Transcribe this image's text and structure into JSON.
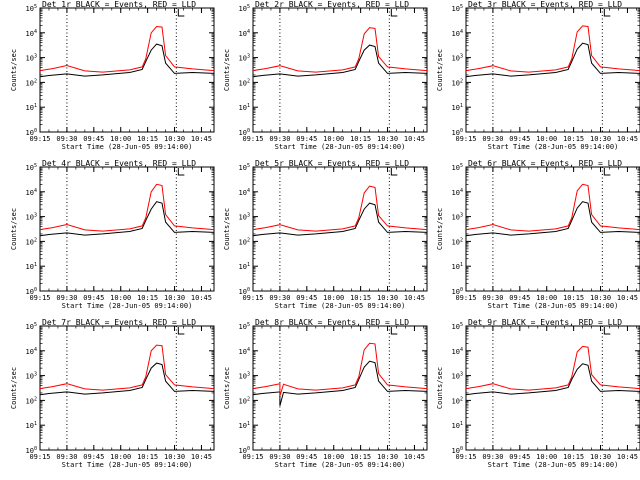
{
  "chart_data": [
    {
      "type": "line",
      "title": "Det 1r BLACK = Events, RED = LLD",
      "xlabel": "Start Time (28-Jun-05 09:14:00)",
      "ylabel": "Counts/sec",
      "yscale": "log",
      "ylim": [
        1,
        100000
      ],
      "xlim": [
        "09:15",
        "10:52"
      ],
      "xticks": [
        "09:15",
        "09:30",
        "09:45",
        "10:00",
        "10:15",
        "10:30",
        "10:45"
      ],
      "yticks": [
        1,
        10,
        100,
        1000,
        10000,
        100000
      ],
      "ytick_labels": [
        "10^0",
        "10^1",
        "10^2",
        "10^3",
        "10^4",
        "10^5"
      ],
      "vlines": [
        "09:30",
        "10:31"
      ],
      "series": [
        {
          "color": "#ff0000",
          "x": [
            "09:15",
            "09:22",
            "09:30",
            "09:40",
            "09:50",
            "10:05",
            "10:12",
            "10:14",
            "10:17",
            "10:20",
            "10:23",
            "10:25",
            "10:30",
            "10:40",
            "10:52"
          ],
          "y": [
            300,
            360,
            480,
            290,
            260,
            320,
            420,
            900,
            10000,
            18000,
            17000,
            1200,
            420,
            350,
            300
          ]
        },
        {
          "color": "#000000",
          "x": [
            "09:15",
            "09:20",
            "09:30",
            "09:40",
            "09:50",
            "10:05",
            "10:12",
            "10:14",
            "10:17",
            "10:20",
            "10:23",
            "10:25",
            "10:30",
            "10:40",
            "10:52"
          ],
          "y": [
            170,
            190,
            220,
            180,
            200,
            250,
            330,
            700,
            2000,
            3500,
            3000,
            600,
            230,
            250,
            230
          ]
        }
      ]
    },
    {
      "type": "line",
      "title": "Det 2r BLACK = Events, RED = LLD",
      "xlabel": "Start Time (28-Jun-05 09:14:00)",
      "ylabel": "Counts/sec",
      "yscale": "log",
      "ylim": [
        1,
        100000
      ],
      "xlim": [
        "09:15",
        "10:52"
      ],
      "xticks": [
        "09:15",
        "09:30",
        "09:45",
        "10:00",
        "10:15",
        "10:30",
        "10:45"
      ],
      "yticks": [
        1,
        10,
        100,
        1000,
        10000,
        100000
      ],
      "ytick_labels": [
        "10^0",
        "10^1",
        "10^2",
        "10^3",
        "10^4",
        "10^5"
      ],
      "vlines": [
        "09:30",
        "10:31"
      ],
      "series": [
        {
          "color": "#ff0000",
          "x": [
            "09:15",
            "09:22",
            "09:30",
            "09:40",
            "09:50",
            "10:05",
            "10:12",
            "10:14",
            "10:17",
            "10:20",
            "10:23",
            "10:25",
            "10:30",
            "10:40",
            "10:52"
          ],
          "y": [
            300,
            360,
            470,
            290,
            260,
            320,
            420,
            900,
            9000,
            16000,
            15000,
            1100,
            420,
            350,
            300
          ]
        },
        {
          "color": "#000000",
          "x": [
            "09:15",
            "09:20",
            "09:30",
            "09:40",
            "09:50",
            "10:05",
            "10:12",
            "10:14",
            "10:17",
            "10:20",
            "10:23",
            "10:25",
            "10:30",
            "10:40",
            "10:52"
          ],
          "y": [
            170,
            190,
            220,
            180,
            200,
            250,
            330,
            700,
            2000,
            3200,
            2800,
            600,
            230,
            250,
            230
          ]
        }
      ]
    },
    {
      "type": "line",
      "title": "Det 3r BLACK = Events, RED = LLD",
      "xlabel": "Start Time (28-Jun-05 09:14:00)",
      "ylabel": "Counts/sec",
      "yscale": "log",
      "ylim": [
        1,
        100000
      ],
      "xlim": [
        "09:15",
        "10:52"
      ],
      "xticks": [
        "09:15",
        "09:30",
        "09:45",
        "10:00",
        "10:15",
        "10:30",
        "10:45"
      ],
      "yticks": [
        1,
        10,
        100,
        1000,
        10000,
        100000
      ],
      "ytick_labels": [
        "10^0",
        "10^1",
        "10^2",
        "10^3",
        "10^4",
        "10^5"
      ],
      "vlines": [
        "09:30",
        "10:31"
      ],
      "series": [
        {
          "color": "#ff0000",
          "x": [
            "09:15",
            "09:22",
            "09:30",
            "09:40",
            "09:50",
            "10:05",
            "10:12",
            "10:14",
            "10:17",
            "10:20",
            "10:23",
            "10:25",
            "10:30",
            "10:40",
            "10:52"
          ],
          "y": [
            300,
            360,
            470,
            290,
            260,
            320,
            420,
            900,
            11000,
            19000,
            18000,
            1200,
            420,
            350,
            300
          ]
        },
        {
          "color": "#000000",
          "x": [
            "09:15",
            "09:20",
            "09:30",
            "09:40",
            "09:50",
            "10:05",
            "10:12",
            "10:14",
            "10:17",
            "10:20",
            "10:23",
            "10:25",
            "10:30",
            "10:40",
            "10:52"
          ],
          "y": [
            170,
            190,
            220,
            180,
            200,
            250,
            330,
            700,
            2200,
            3800,
            3300,
            600,
            230,
            250,
            230
          ]
        }
      ]
    },
    {
      "type": "line",
      "title": "Det 4r BLACK = Events, RED = LLD",
      "xlabel": "Start Time (28-Jun-05 09:14:00)",
      "ylabel": "Counts/sec",
      "yscale": "log",
      "ylim": [
        1,
        100000
      ],
      "xlim": [
        "09:15",
        "10:52"
      ],
      "xticks": [
        "09:15",
        "09:30",
        "09:45",
        "10:00",
        "10:15",
        "10:30",
        "10:45"
      ],
      "yticks": [
        1,
        10,
        100,
        1000,
        10000,
        100000
      ],
      "ytick_labels": [
        "10^0",
        "10^1",
        "10^2",
        "10^3",
        "10^4",
        "10^5"
      ],
      "vlines": [
        "09:30",
        "10:31"
      ],
      "series": [
        {
          "color": "#ff0000",
          "x": [
            "09:15",
            "09:22",
            "09:30",
            "09:40",
            "09:50",
            "10:05",
            "10:12",
            "10:14",
            "10:17",
            "10:20",
            "10:23",
            "10:25",
            "10:30",
            "10:40",
            "10:52"
          ],
          "y": [
            300,
            360,
            480,
            290,
            260,
            320,
            420,
            900,
            10000,
            20000,
            18000,
            1200,
            420,
            350,
            300
          ]
        },
        {
          "color": "#000000",
          "x": [
            "09:15",
            "09:20",
            "09:30",
            "09:40",
            "09:50",
            "10:05",
            "10:12",
            "10:14",
            "10:17",
            "10:20",
            "10:23",
            "10:25",
            "10:30",
            "10:40",
            "10:52"
          ],
          "y": [
            170,
            190,
            220,
            180,
            200,
            250,
            330,
            700,
            2000,
            4000,
            3500,
            600,
            230,
            250,
            230
          ]
        }
      ]
    },
    {
      "type": "line",
      "title": "Det 5r BLACK = Events, RED = LLD",
      "xlabel": "Start Time (28-Jun-05 09:14:00)",
      "ylabel": "Counts/sec",
      "yscale": "log",
      "ylim": [
        1,
        100000
      ],
      "xlim": [
        "09:15",
        "10:52"
      ],
      "xticks": [
        "09:15",
        "09:30",
        "09:45",
        "10:00",
        "10:15",
        "10:30",
        "10:45"
      ],
      "yticks": [
        1,
        10,
        100,
        1000,
        10000,
        100000
      ],
      "ytick_labels": [
        "10^0",
        "10^1",
        "10^2",
        "10^3",
        "10^4",
        "10^5"
      ],
      "vlines": [
        "09:30",
        "10:31"
      ],
      "series": [
        {
          "color": "#ff0000",
          "x": [
            "09:15",
            "09:22",
            "09:30",
            "09:40",
            "09:50",
            "10:05",
            "10:12",
            "10:14",
            "10:17",
            "10:20",
            "10:23",
            "10:25",
            "10:30",
            "10:40",
            "10:52"
          ],
          "y": [
            300,
            360,
            470,
            290,
            260,
            320,
            420,
            900,
            9000,
            17000,
            15000,
            1100,
            420,
            350,
            300
          ]
        },
        {
          "color": "#000000",
          "x": [
            "09:15",
            "09:20",
            "09:30",
            "09:40",
            "09:50",
            "10:05",
            "10:12",
            "10:14",
            "10:17",
            "10:20",
            "10:23",
            "10:25",
            "10:30",
            "10:40",
            "10:52"
          ],
          "y": [
            170,
            190,
            220,
            180,
            200,
            250,
            330,
            700,
            2000,
            3500,
            3000,
            600,
            230,
            250,
            230
          ]
        }
      ]
    },
    {
      "type": "line",
      "title": "Det 6r BLACK = Events, RED = LLD",
      "xlabel": "Start Time (28-Jun-05 09:14:00)",
      "ylabel": "Counts/sec",
      "yscale": "log",
      "ylim": [
        1,
        100000
      ],
      "xlim": [
        "09:15",
        "10:52"
      ],
      "xticks": [
        "09:15",
        "09:30",
        "09:45",
        "10:00",
        "10:15",
        "10:30",
        "10:45"
      ],
      "yticks": [
        1,
        10,
        100,
        1000,
        10000,
        100000
      ],
      "ytick_labels": [
        "10^0",
        "10^1",
        "10^2",
        "10^3",
        "10^4",
        "10^5"
      ],
      "vlines": [
        "09:30",
        "10:31"
      ],
      "series": [
        {
          "color": "#ff0000",
          "x": [
            "09:15",
            "09:22",
            "09:30",
            "09:40",
            "09:50",
            "10:05",
            "10:12",
            "10:14",
            "10:17",
            "10:20",
            "10:23",
            "10:25",
            "10:30",
            "10:40",
            "10:52"
          ],
          "y": [
            300,
            360,
            480,
            290,
            260,
            320,
            420,
            900,
            11000,
            20000,
            18000,
            1200,
            420,
            350,
            300
          ]
        },
        {
          "color": "#000000",
          "x": [
            "09:15",
            "09:20",
            "09:30",
            "09:40",
            "09:50",
            "10:05",
            "10:12",
            "10:14",
            "10:17",
            "10:20",
            "10:23",
            "10:25",
            "10:30",
            "10:40",
            "10:52"
          ],
          "y": [
            170,
            190,
            220,
            180,
            200,
            250,
            330,
            700,
            2200,
            4000,
            3500,
            600,
            230,
            250,
            230
          ]
        }
      ]
    },
    {
      "type": "line",
      "title": "Det 7r BLACK = Events, RED = LLD",
      "xlabel": "Start Time (28-Jun-05 09:14:00)",
      "ylabel": "Counts/sec",
      "yscale": "log",
      "ylim": [
        1,
        100000
      ],
      "xlim": [
        "09:15",
        "10:52"
      ],
      "xticks": [
        "09:15",
        "09:30",
        "09:45",
        "10:00",
        "10:15",
        "10:30",
        "10:45"
      ],
      "yticks": [
        1,
        10,
        100,
        1000,
        10000,
        100000
      ],
      "ytick_labels": [
        "10^0",
        "10^1",
        "10^2",
        "10^3",
        "10^4",
        "10^5"
      ],
      "vlines": [
        "09:30",
        "10:31"
      ],
      "series": [
        {
          "color": "#ff0000",
          "x": [
            "09:15",
            "09:22",
            "09:30",
            "09:40",
            "09:50",
            "10:05",
            "10:12",
            "10:14",
            "10:17",
            "10:20",
            "10:23",
            "10:25",
            "10:30",
            "10:40",
            "10:52"
          ],
          "y": [
            300,
            360,
            470,
            290,
            260,
            320,
            420,
            900,
            10000,
            17000,
            16000,
            1100,
            420,
            350,
            300
          ]
        },
        {
          "color": "#000000",
          "x": [
            "09:15",
            "09:20",
            "09:30",
            "09:40",
            "09:50",
            "10:05",
            "10:12",
            "10:14",
            "10:17",
            "10:20",
            "10:23",
            "10:25",
            "10:30",
            "10:40",
            "10:52"
          ],
          "y": [
            170,
            190,
            220,
            180,
            200,
            250,
            330,
            700,
            2000,
            3200,
            2800,
            600,
            230,
            250,
            230
          ]
        }
      ]
    },
    {
      "type": "line",
      "title": "Det 8r BLACK = Events, RED = LLD",
      "xlabel": "Start Time (28-Jun-05 09:14:00)",
      "ylabel": "Counts/sec",
      "yscale": "log",
      "ylim": [
        1,
        100000
      ],
      "xlim": [
        "09:15",
        "10:52"
      ],
      "xticks": [
        "09:15",
        "09:30",
        "09:45",
        "10:00",
        "10:15",
        "10:30",
        "10:45"
      ],
      "yticks": [
        1,
        10,
        100,
        1000,
        10000,
        100000
      ],
      "ytick_labels": [
        "10^0",
        "10^1",
        "10^2",
        "10^3",
        "10^4",
        "10^5"
      ],
      "vlines": [
        "09:30",
        "10:31"
      ],
      "series": [
        {
          "color": "#ff0000",
          "x": [
            "09:15",
            "09:22",
            "09:30",
            "09:30",
            "09:32",
            "09:40",
            "09:50",
            "10:05",
            "10:12",
            "10:14",
            "10:17",
            "10:20",
            "10:23",
            "10:25",
            "10:30",
            "10:40",
            "10:52"
          ],
          "y": [
            300,
            360,
            470,
            150,
            450,
            290,
            260,
            320,
            420,
            900,
            11000,
            20000,
            19000,
            1200,
            420,
            350,
            300
          ]
        },
        {
          "color": "#000000",
          "x": [
            "09:15",
            "09:20",
            "09:30",
            "09:30",
            "09:32",
            "09:40",
            "09:50",
            "10:05",
            "10:12",
            "10:14",
            "10:17",
            "10:20",
            "10:23",
            "10:25",
            "10:30",
            "10:40",
            "10:52"
          ],
          "y": [
            170,
            190,
            220,
            60,
            210,
            180,
            200,
            250,
            330,
            700,
            2200,
            3800,
            3300,
            600,
            230,
            250,
            230
          ]
        }
      ]
    },
    {
      "type": "line",
      "title": "Det 9r BLACK = Events, RED = LLD",
      "xlabel": "Start Time (28-Jun-05 09:14:00)",
      "ylabel": "Counts/sec",
      "yscale": "log",
      "ylim": [
        1,
        100000
      ],
      "xlim": [
        "09:15",
        "10:52"
      ],
      "xticks": [
        "09:15",
        "09:30",
        "09:45",
        "10:00",
        "10:15",
        "10:30",
        "10:45"
      ],
      "yticks": [
        1,
        10,
        100,
        1000,
        10000,
        100000
      ],
      "ytick_labels": [
        "10^0",
        "10^1",
        "10^2",
        "10^3",
        "10^4",
        "10^5"
      ],
      "vlines": [
        "09:30",
        "10:31"
      ],
      "series": [
        {
          "color": "#ff0000",
          "x": [
            "09:15",
            "09:22",
            "09:30",
            "09:40",
            "09:50",
            "10:05",
            "10:12",
            "10:14",
            "10:17",
            "10:20",
            "10:23",
            "10:25",
            "10:30",
            "10:40",
            "10:52"
          ],
          "y": [
            300,
            360,
            470,
            290,
            260,
            320,
            420,
            900,
            9000,
            15000,
            14000,
            1100,
            420,
            350,
            300
          ]
        },
        {
          "color": "#000000",
          "x": [
            "09:15",
            "09:20",
            "09:30",
            "09:40",
            "09:50",
            "10:05",
            "10:12",
            "10:14",
            "10:17",
            "10:20",
            "10:23",
            "10:25",
            "10:30",
            "10:40",
            "10:52"
          ],
          "y": [
            170,
            190,
            220,
            180,
            200,
            250,
            330,
            700,
            1800,
            3000,
            2600,
            600,
            230,
            250,
            230
          ]
        }
      ]
    }
  ]
}
